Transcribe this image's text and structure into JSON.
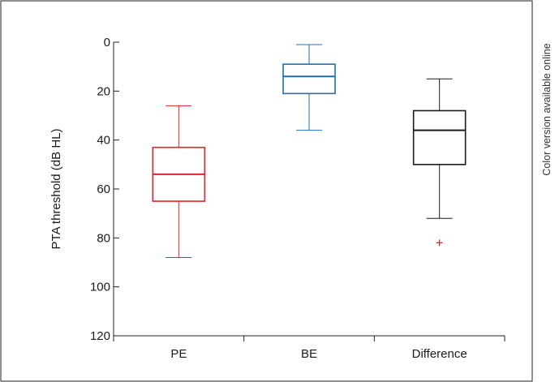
{
  "side_note": "Color version available online",
  "chart_data": {
    "type": "box",
    "ylabel": "PTA threshold (dB HL)",
    "xlabel": "",
    "title": "",
    "ylim": [
      0,
      120
    ],
    "y_inverted": true,
    "y_ticks": [
      0,
      20,
      40,
      60,
      80,
      100,
      120
    ],
    "grid": false,
    "categories": [
      "PE",
      "BE",
      "Difference"
    ],
    "boxes": [
      {
        "category": "PE",
        "whisker_low": 26,
        "q1": 43,
        "median": 54,
        "q3": 65,
        "whisker_high": 88,
        "outliers": [],
        "color": "#e8202a"
      },
      {
        "category": "BE",
        "whisker_low": 1,
        "q1": 9,
        "median": 14,
        "q3": 21,
        "whisker_high": 36,
        "outliers": [],
        "color": "#1f6fb4"
      },
      {
        "category": "Difference",
        "whisker_low": 15,
        "q1": 28,
        "median": 36,
        "q3": 50,
        "whisker_high": 72,
        "outliers": [
          82
        ],
        "color": "#1a1a1a",
        "outlier_color": "#e8202a"
      }
    ]
  }
}
